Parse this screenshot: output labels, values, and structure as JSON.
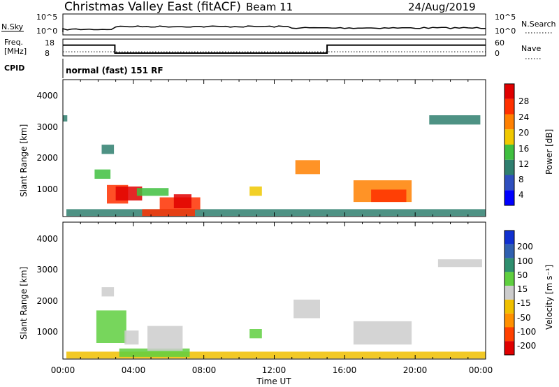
{
  "header": {
    "title": "Christmas Valley East (fitACF)",
    "beam": "Beam 11",
    "date": "24/Aug/2019"
  },
  "nsky_panel": {
    "left_label": "N.Sky",
    "left_ticks": [
      "10^5",
      "10^0"
    ],
    "right_ticks": [
      "10^5",
      "10^0"
    ],
    "right_label": "N.Search"
  },
  "freq_panel": {
    "left_label_1": "Freq.",
    "left_label_2": "[MHz]",
    "left_ticks": [
      "18",
      "8"
    ],
    "right_ticks": [
      "60",
      "0"
    ],
    "right_label": "Nave",
    "freq_steps": [
      {
        "from_hour": 0,
        "to_hour": 2.95,
        "mhz": 15.0
      },
      {
        "from_hour": 2.95,
        "to_hour": 15.0,
        "mhz": 9.8
      },
      {
        "from_hour": 15.0,
        "to_hour": 24,
        "mhz": 15.0
      }
    ],
    "nave_level": 16
  },
  "cpid": {
    "label": "CPID",
    "text": "normal (fast) 151 RF"
  },
  "time_axis": {
    "ticks": [
      "00:00",
      "04:00",
      "08:00",
      "12:00",
      "16:00",
      "20:00",
      "00:00"
    ],
    "label": "Time UT"
  },
  "power_panel": {
    "ylabel": "Slant Range [km]",
    "yticks": [
      "4000",
      "3000",
      "2000",
      "1000"
    ],
    "colorbar_label": "Power [dB]",
    "colorbar_ticks": [
      "28",
      "24",
      "20",
      "16",
      "12",
      "8",
      "4"
    ],
    "colors": [
      "#0000ff",
      "#2f4fbf",
      "#2f7f6f",
      "#3fbf3f",
      "#f0c800",
      "#ff8000",
      "#ff3000",
      "#e00000"
    ]
  },
  "velocity_panel": {
    "ylabel": "Slant Range [km]",
    "yticks": [
      "4000",
      "3000",
      "2000",
      "1000"
    ],
    "colorbar_label": "Velocity [m s⁻¹]",
    "colorbar_ticks": [
      "200",
      "100",
      "50",
      "15",
      "-15",
      "-50",
      "-100",
      "-200"
    ],
    "colors": [
      "#1030d0",
      "#3060b0",
      "#2f8f6f",
      "#5fcf3f",
      "#cccccc",
      "#f0c000",
      "#ff9000",
      "#ff4000",
      "#e00000"
    ]
  },
  "chart_data": [
    {
      "type": "heatmap",
      "title": "Power",
      "xlabel": "Time UT",
      "ylabel": "Slant Range [km]",
      "xlim_hours": [
        0,
        24
      ],
      "ylim_km": [
        180,
        4600
      ],
      "clabel": "Power [dB]",
      "clim": [
        0,
        30
      ],
      "regions": [
        {
          "t0": 0.2,
          "t1": 24,
          "r0": 200,
          "r1": 420,
          "level": 2
        },
        {
          "t0": 4.5,
          "t1": 7.5,
          "r0": 200,
          "r1": 420,
          "level": 6
        },
        {
          "t0": 1.8,
          "t1": 2.7,
          "r0": 1400,
          "r1": 1700,
          "level": 3
        },
        {
          "t0": 2.5,
          "t1": 3.7,
          "r0": 600,
          "r1": 1200,
          "level": 6
        },
        {
          "t0": 3.0,
          "t1": 4.5,
          "r0": 700,
          "r1": 1150,
          "level": 7
        },
        {
          "t0": 4.2,
          "t1": 6.0,
          "r0": 850,
          "r1": 1100,
          "level": 3
        },
        {
          "t0": 5.5,
          "t1": 7.8,
          "r0": 400,
          "r1": 800,
          "level": 6
        },
        {
          "t0": 6.3,
          "t1": 7.3,
          "r0": 450,
          "r1": 900,
          "level": 7
        },
        {
          "t0": 2.2,
          "t1": 2.9,
          "r0": 2200,
          "r1": 2500,
          "level": 2
        },
        {
          "t0": 10.6,
          "t1": 11.3,
          "r0": 850,
          "r1": 1150,
          "level": 4
        },
        {
          "t0": 13.2,
          "t1": 14.6,
          "r0": 1550,
          "r1": 2000,
          "level": 5
        },
        {
          "t0": 16.5,
          "t1": 19.8,
          "r0": 650,
          "r1": 1350,
          "level": 5
        },
        {
          "t0": 17.5,
          "t1": 19.5,
          "r0": 650,
          "r1": 1050,
          "level": 6
        },
        {
          "t0": 20.8,
          "t1": 23.7,
          "r0": 3150,
          "r1": 3450,
          "level": 2
        },
        {
          "t0": 0.0,
          "t1": 0.25,
          "r0": 3250,
          "r1": 3450,
          "level": 2
        }
      ]
    },
    {
      "type": "heatmap",
      "title": "Velocity",
      "xlabel": "Time UT",
      "ylabel": "Slant Range [km]",
      "xlim_hours": [
        0,
        24
      ],
      "ylim_km": [
        180,
        4600
      ],
      "clabel": "Velocity [m s⁻¹]",
      "clim": [
        -250,
        250
      ],
      "regions": [
        {
          "t0": 0.2,
          "t1": 24,
          "r0": 200,
          "r1": 420,
          "level": 5
        },
        {
          "t0": 3.2,
          "t1": 7.2,
          "r0": 250,
          "r1": 520,
          "level": 3
        },
        {
          "t0": 1.9,
          "t1": 3.6,
          "r0": 700,
          "r1": 1750,
          "level": 3
        },
        {
          "t0": 3.5,
          "t1": 4.3,
          "r0": 650,
          "r1": 1100,
          "level": 4
        },
        {
          "t0": 4.8,
          "t1": 6.8,
          "r0": 450,
          "r1": 1250,
          "level": 4
        },
        {
          "t0": 10.6,
          "t1": 11.3,
          "r0": 850,
          "r1": 1150,
          "level": 3
        },
        {
          "t0": 13.1,
          "t1": 14.6,
          "r0": 1500,
          "r1": 2100,
          "level": 4
        },
        {
          "t0": 16.5,
          "t1": 19.8,
          "r0": 650,
          "r1": 1400,
          "level": 4
        },
        {
          "t0": 2.2,
          "t1": 2.9,
          "r0": 2200,
          "r1": 2500,
          "level": 4
        },
        {
          "t0": 21.3,
          "t1": 23.8,
          "r0": 3150,
          "r1": 3400,
          "level": 4
        }
      ]
    }
  ]
}
